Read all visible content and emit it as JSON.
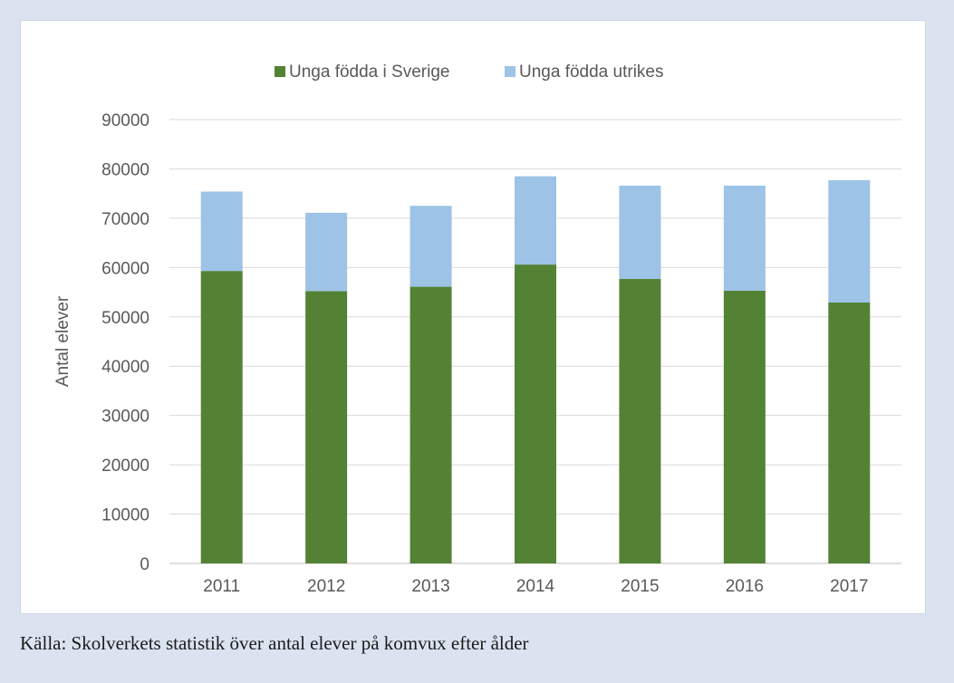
{
  "chart_data": {
    "type": "bar",
    "stacked": true,
    "categories": [
      "2011",
      "2012",
      "2013",
      "2014",
      "2015",
      "2016",
      "2017"
    ],
    "series": [
      {
        "name": "Unga födda i Sverige",
        "color": "#548235",
        "values": [
          59300,
          55200,
          56100,
          60600,
          57700,
          55300,
          52900
        ]
      },
      {
        "name": "Unga födda utrikes",
        "color": "#9dc3e6",
        "values": [
          16100,
          15900,
          16400,
          17900,
          18900,
          21300,
          24800
        ]
      }
    ],
    "title": "",
    "xlabel": "",
    "ylabel": "Antal elever",
    "ylim": [
      0,
      90000
    ],
    "yticks": [
      0,
      10000,
      20000,
      30000,
      40000,
      50000,
      60000,
      70000,
      80000,
      90000
    ],
    "grid": true,
    "legend_position": "top"
  },
  "source_note": "Källa: Skolverkets statistik över antal elever på komvux efter ålder"
}
